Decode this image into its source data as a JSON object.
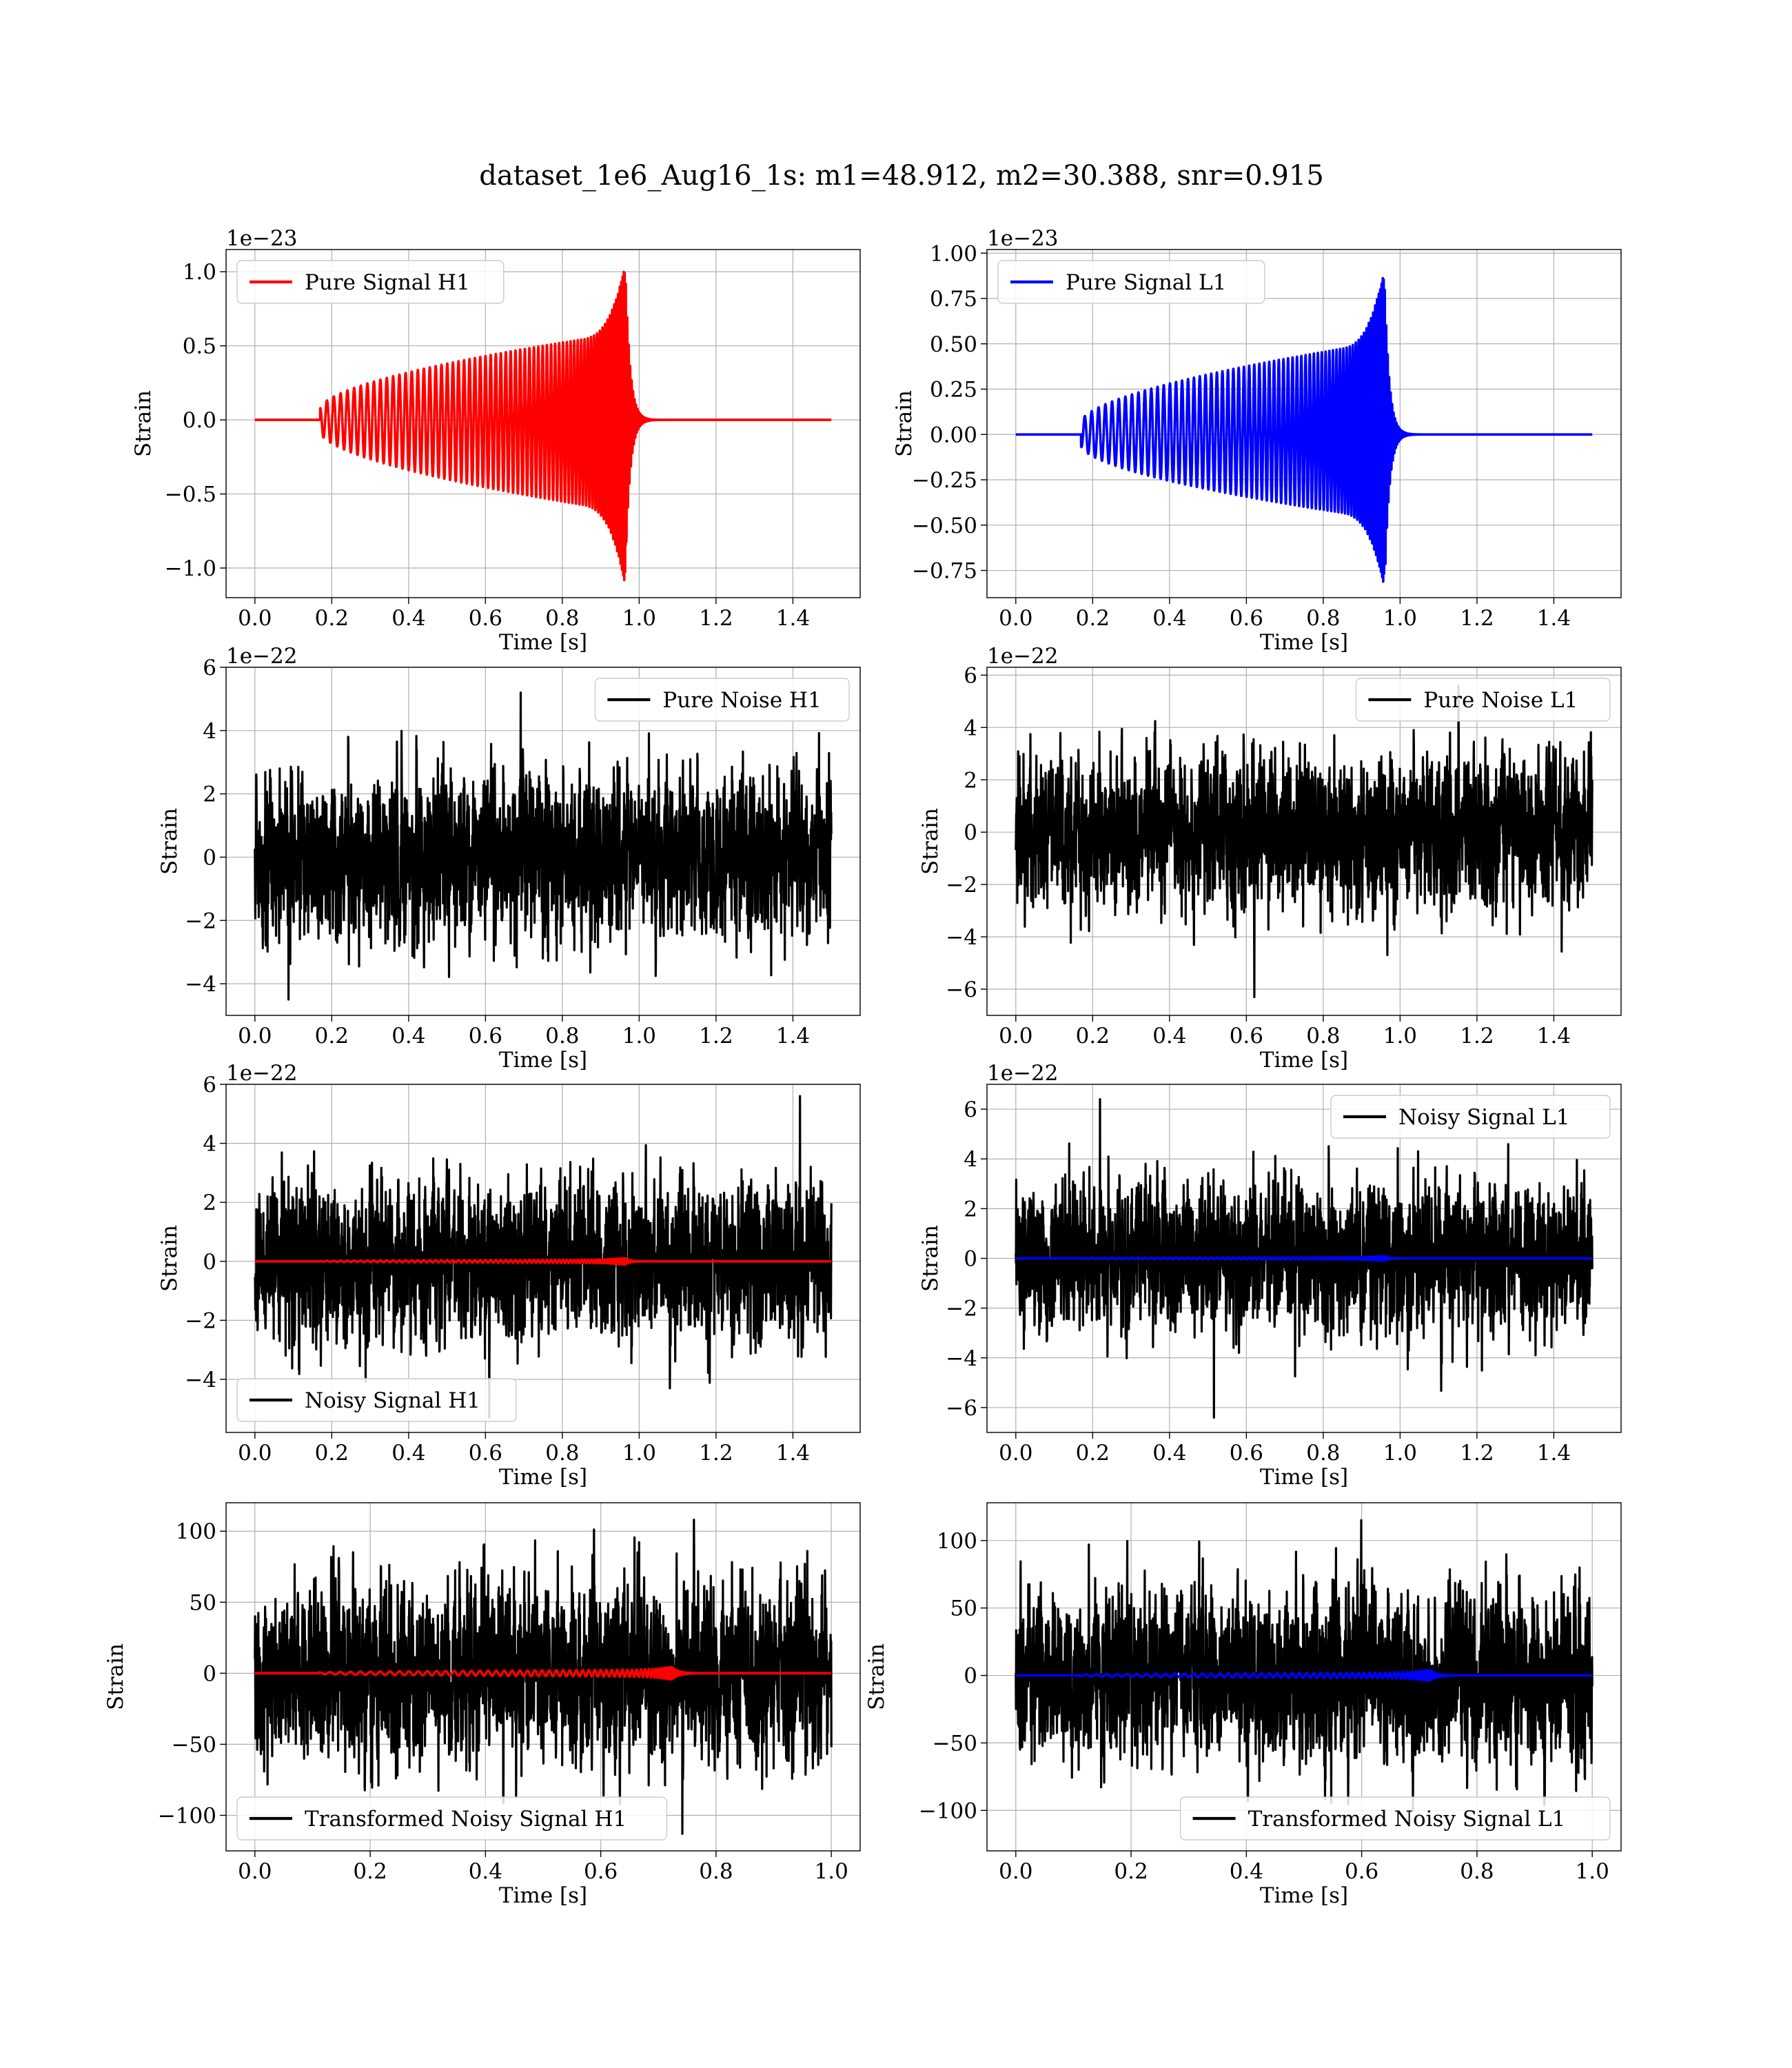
{
  "suptitle": "dataset_1e6_Aug16_1s: m1=48.912, m2=30.388, snr=0.915",
  "chart_data": [
    {
      "id": "h1-pure-signal",
      "type": "line",
      "xlabel": "Time [s]",
      "ylabel": "Strain",
      "offset_text": "1e−23",
      "xlim": [
        -0.075,
        1.575
      ],
      "ylim": [
        -1.2,
        1.15
      ],
      "xticks": [
        0,
        0.2,
        0.4,
        0.6,
        0.8,
        1.0,
        1.2,
        1.4
      ],
      "xtick_labels": [
        "0.0",
        "0.2",
        "0.4",
        "0.6",
        "0.8",
        "1.0",
        "1.2",
        "1.4"
      ],
      "yticks": [
        -1.0,
        -0.5,
        0,
        0.5,
        1.0
      ],
      "ytick_labels": [
        "−1.0",
        "−0.5",
        "0.0",
        "0.5",
        "1.0"
      ],
      "legend_position": "upper-left",
      "series": [
        {
          "name": "Pure Signal H1",
          "color": "#ff0000",
          "kind": "chirp",
          "duration": 1.5,
          "start": 0.17,
          "merger": 0.965,
          "amp_start": 0.08,
          "amp_peak": 1.07,
          "amp_min": -1.13
        }
      ]
    },
    {
      "id": "l1-pure-signal",
      "type": "line",
      "xlabel": "Time [s]",
      "ylabel": "Strain",
      "offset_text": "1e−23",
      "xlim": [
        -0.075,
        1.575
      ],
      "ylim": [
        -0.9,
        1.02
      ],
      "xticks": [
        0,
        0.2,
        0.4,
        0.6,
        0.8,
        1.0,
        1.2,
        1.4
      ],
      "xtick_labels": [
        "0.0",
        "0.2",
        "0.4",
        "0.6",
        "0.8",
        "1.0",
        "1.2",
        "1.4"
      ],
      "yticks": [
        -0.75,
        -0.5,
        -0.25,
        0,
        0.25,
        0.5,
        0.75,
        1.0
      ],
      "ytick_labels": [
        "−0.75",
        "−0.50",
        "−0.25",
        "0.00",
        "0.25",
        "0.50",
        "0.75",
        "1.00"
      ],
      "legend_position": "upper-left",
      "series": [
        {
          "name": "Pure Signal L1",
          "color": "#0000ff",
          "kind": "chirp",
          "duration": 1.5,
          "start": 0.17,
          "merger": 0.96,
          "amp_start": 0.07,
          "amp_peak": 0.93,
          "amp_min": -0.85
        }
      ]
    },
    {
      "id": "h1-pure-noise",
      "type": "line",
      "xlabel": "Time [s]",
      "ylabel": "Strain",
      "offset_text": "1e−22",
      "xlim": [
        -0.075,
        1.575
      ],
      "ylim": [
        -5.0,
        6.0
      ],
      "xticks": [
        0,
        0.2,
        0.4,
        0.6,
        0.8,
        1.0,
        1.2,
        1.4
      ],
      "xtick_labels": [
        "0.0",
        "0.2",
        "0.4",
        "0.6",
        "0.8",
        "1.0",
        "1.2",
        "1.4"
      ],
      "yticks": [
        -4,
        -2,
        0,
        2,
        4,
        6
      ],
      "ytick_labels": [
        "−4",
        "−2",
        "0",
        "2",
        "4",
        "6"
      ],
      "legend_position": "upper-right",
      "series": [
        {
          "name": "Pure Noise H1",
          "color": "#000000",
          "kind": "noise",
          "duration": 1.5,
          "sigma": 1.25,
          "max": 5.2,
          "min": -4.5
        }
      ]
    },
    {
      "id": "l1-pure-noise",
      "type": "line",
      "xlabel": "Time [s]",
      "ylabel": "Strain",
      "offset_text": "1e−22",
      "xlim": [
        -0.075,
        1.575
      ],
      "ylim": [
        -7.0,
        6.3
      ],
      "xticks": [
        0,
        0.2,
        0.4,
        0.6,
        0.8,
        1.0,
        1.2,
        1.4
      ],
      "xtick_labels": [
        "0.0",
        "0.2",
        "0.4",
        "0.6",
        "0.8",
        "1.0",
        "1.2",
        "1.4"
      ],
      "yticks": [
        -6,
        -4,
        -2,
        0,
        2,
        4,
        6
      ],
      "ytick_labels": [
        "−6",
        "−4",
        "−2",
        "0",
        "2",
        "4",
        "6"
      ],
      "legend_position": "upper-right",
      "series": [
        {
          "name": "Pure Noise L1",
          "color": "#000000",
          "kind": "noise",
          "duration": 1.5,
          "sigma": 1.45,
          "max": 5.6,
          "min": -6.3
        }
      ]
    },
    {
      "id": "h1-noisy-signal",
      "type": "line",
      "xlabel": "Time [s]",
      "ylabel": "Strain",
      "offset_text": "1e−22",
      "xlim": [
        -0.075,
        1.575
      ],
      "ylim": [
        -5.8,
        6.0
      ],
      "xticks": [
        0,
        0.2,
        0.4,
        0.6,
        0.8,
        1.0,
        1.2,
        1.4
      ],
      "xtick_labels": [
        "0.0",
        "0.2",
        "0.4",
        "0.6",
        "0.8",
        "1.0",
        "1.2",
        "1.4"
      ],
      "yticks": [
        -4,
        -2,
        0,
        2,
        4,
        6
      ],
      "ytick_labels": [
        "−4",
        "−2",
        "0",
        "2",
        "4",
        "6"
      ],
      "legend_position": "lower-left",
      "series": [
        {
          "name": "Noisy Signal H1",
          "color": "#000000",
          "kind": "noise",
          "duration": 1.5,
          "sigma": 1.3,
          "max": 5.6,
          "min": -5.3
        },
        {
          "color": "#ff0000",
          "kind": "chirp",
          "duration": 1.5,
          "start": 0.17,
          "merger": 0.965,
          "amp_start": 0.01,
          "amp_peak": 0.11,
          "amp_min": -0.11
        }
      ]
    },
    {
      "id": "l1-noisy-signal",
      "type": "line",
      "xlabel": "Time [s]",
      "ylabel": "Strain",
      "offset_text": "1e−22",
      "xlim": [
        -0.075,
        1.575
      ],
      "ylim": [
        -7.0,
        7.0
      ],
      "xticks": [
        0,
        0.2,
        0.4,
        0.6,
        0.8,
        1.0,
        1.2,
        1.4
      ],
      "xtick_labels": [
        "0.0",
        "0.2",
        "0.4",
        "0.6",
        "0.8",
        "1.0",
        "1.2",
        "1.4"
      ],
      "yticks": [
        -6,
        -4,
        -2,
        0,
        2,
        4,
        6
      ],
      "ytick_labels": [
        "−6",
        "−4",
        "−2",
        "0",
        "2",
        "4",
        "6"
      ],
      "legend_position": "upper-right",
      "series": [
        {
          "name": "Noisy Signal L1",
          "color": "#000000",
          "kind": "noise",
          "duration": 1.5,
          "sigma": 1.45,
          "max": 6.4,
          "min": -6.4
        },
        {
          "color": "#0000ff",
          "kind": "chirp",
          "duration": 1.5,
          "start": 0.17,
          "merger": 0.96,
          "amp_start": 0.01,
          "amp_peak": 0.09,
          "amp_min": -0.09
        }
      ]
    },
    {
      "id": "h1-transformed",
      "type": "line",
      "xlabel": "Time [s]",
      "ylabel": "Strain",
      "offset_text": "",
      "xlim": [
        -0.05,
        1.05
      ],
      "ylim": [
        -125,
        120
      ],
      "xticks": [
        0,
        0.2,
        0.4,
        0.6,
        0.8,
        1.0
      ],
      "xtick_labels": [
        "0.0",
        "0.2",
        "0.4",
        "0.6",
        "0.8",
        "1.0"
      ],
      "yticks": [
        -100,
        -50,
        0,
        50,
        100
      ],
      "ytick_labels": [
        "−100",
        "−50",
        "0",
        "50",
        "100"
      ],
      "legend_position": "lower-left",
      "series": [
        {
          "name": "Transformed Noisy Signal H1",
          "color": "#000000",
          "kind": "noise",
          "duration": 1.0,
          "sigma": 30,
          "max": 108,
          "min": -113
        },
        {
          "color": "#ff0000",
          "kind": "chirp",
          "duration": 1.0,
          "start": 0.11,
          "merger": 0.725,
          "amp_start": 0.5,
          "amp_peak": 4.5,
          "amp_min": -4.5
        }
      ]
    },
    {
      "id": "l1-transformed",
      "type": "line",
      "xlabel": "Time [s]",
      "ylabel": "Strain",
      "offset_text": "",
      "xlim": [
        -0.05,
        1.05
      ],
      "ylim": [
        -130,
        128
      ],
      "xticks": [
        0,
        0.2,
        0.4,
        0.6,
        0.8,
        1.0
      ],
      "xtick_labels": [
        "0.0",
        "0.2",
        "0.4",
        "0.6",
        "0.8",
        "1.0"
      ],
      "yticks": [
        -100,
        -50,
        0,
        50,
        100
      ],
      "ytick_labels": [
        "−100",
        "−50",
        "0",
        "50",
        "100"
      ],
      "legend_position": "lower-right",
      "series": [
        {
          "name": "Transformed Noisy Signal L1",
          "color": "#000000",
          "kind": "noise",
          "duration": 1.0,
          "sigma": 30,
          "max": 115,
          "min": -100
        },
        {
          "color": "#0000ff",
          "kind": "chirp",
          "duration": 1.0,
          "start": 0.11,
          "merger": 0.72,
          "amp_start": 0.5,
          "amp_peak": 4.0,
          "amp_min": -4.0
        }
      ]
    }
  ]
}
